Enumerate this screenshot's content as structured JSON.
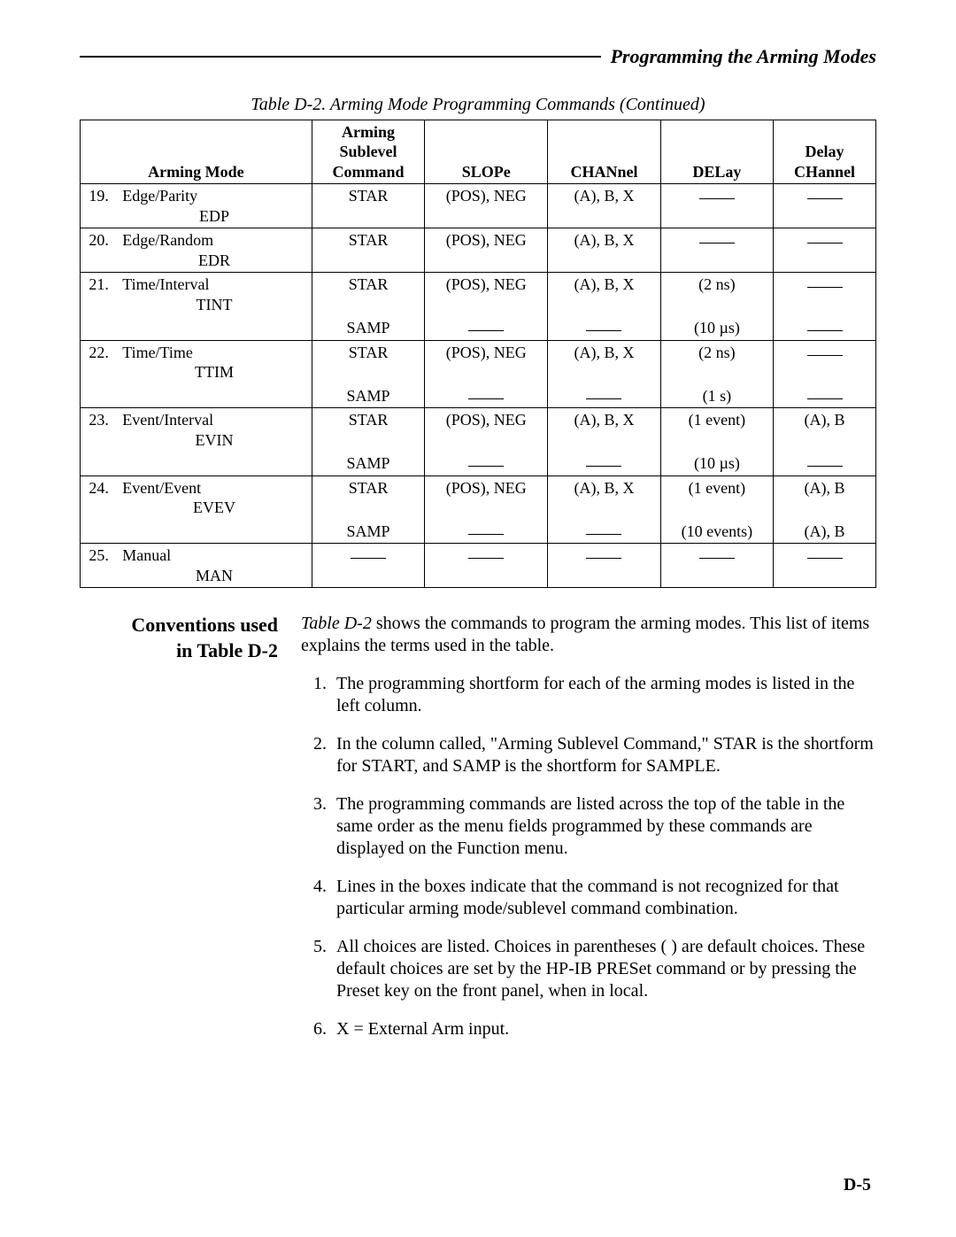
{
  "header": {
    "title": "Programming the Arming Modes"
  },
  "table": {
    "caption": "Table D-2. Arming Mode Programming Commands (Continued)",
    "headers": {
      "mode": "Arming Mode",
      "cmd_l1": "Arming",
      "cmd_l2": "Sublevel",
      "cmd_l3": "Command",
      "slope": "SLOPe",
      "channel": "CHANnel",
      "delay": "DELay",
      "dchan_l1": "Delay",
      "dchan_l2": "CHannel"
    },
    "rows": [
      {
        "num": "19.",
        "mode": "Edge/Parity",
        "sub": "EDP",
        "lines": [
          {
            "cmd": "STAR",
            "slope": "(POS), NEG",
            "chan": "(A), B, X",
            "delay": "—",
            "dchan": "—"
          }
        ]
      },
      {
        "num": "20.",
        "mode": "Edge/Random",
        "sub": "EDR",
        "lines": [
          {
            "cmd": "STAR",
            "slope": "(POS), NEG",
            "chan": "(A), B, X",
            "delay": "—",
            "dchan": "—"
          }
        ]
      },
      {
        "num": "21.",
        "mode": "Time/Interval",
        "sub": "TINT",
        "lines": [
          {
            "cmd": "STAR",
            "slope": "(POS), NEG",
            "chan": "(A), B, X",
            "delay": "(2 ns)",
            "dchan": "—"
          },
          {
            "cmd": "SAMP",
            "slope": "—",
            "chan": "—",
            "delay": "(10 µs)",
            "dchan": "—"
          }
        ]
      },
      {
        "num": "22.",
        "mode": "Time/Time",
        "sub": "TTIM",
        "lines": [
          {
            "cmd": "STAR",
            "slope": "(POS), NEG",
            "chan": "(A), B, X",
            "delay": "(2 ns)",
            "dchan": "—"
          },
          {
            "cmd": "SAMP",
            "slope": "—",
            "chan": "—",
            "delay": "(1 s)",
            "dchan": "—"
          }
        ]
      },
      {
        "num": "23.",
        "mode": "Event/Interval",
        "sub": "EVIN",
        "lines": [
          {
            "cmd": "STAR",
            "slope": "(POS), NEG",
            "chan": "(A), B, X",
            "delay": "(1 event)",
            "dchan": "(A), B"
          },
          {
            "cmd": "SAMP",
            "slope": "—",
            "chan": "—",
            "delay": "(10 µs)",
            "dchan": "—"
          }
        ]
      },
      {
        "num": "24.",
        "mode": "Event/Event",
        "sub": "EVEV",
        "lines": [
          {
            "cmd": "STAR",
            "slope": "(POS), NEG",
            "chan": "(A), B, X",
            "delay": "(1 event)",
            "dchan": "(A), B"
          },
          {
            "cmd": "SAMP",
            "slope": "—",
            "chan": "—",
            "delay": "(10 events)",
            "dchan": "(A), B"
          }
        ]
      },
      {
        "num": "25.",
        "mode": "Manual",
        "sub": "MAN",
        "lines": [
          {
            "cmd": "—",
            "slope": "—",
            "chan": "—",
            "delay": "—",
            "dchan": "—"
          }
        ]
      }
    ]
  },
  "conventions": {
    "heading_l1": "Conventions used",
    "heading_l2": "in Table D-2",
    "intro_prefix_ital": "Table D-2",
    "intro_rest": " shows the commands to program the arming modes. This list of items explains the terms used in the table.",
    "items": [
      "The programming shortform for each of the arming modes is listed in the left column.",
      "In the column called, \"Arming Sublevel Command,\" STAR is the shortform for START, and SAMP is the shortform for SAMPLE.",
      "The programming commands are listed across the top of the table in the same order as the menu fields programmed by these commands are displayed on the Function menu.",
      "Lines in the boxes indicate that the command is not recognized for that particular arming mode/sublevel command combination.",
      "All choices are listed. Choices in parentheses ( ) are default choices. These default choices are set by the HP-IB PRESet command or by pressing the Preset key on the front panel, when in local.",
      "X = External Arm input."
    ]
  },
  "pageNumber": "D-5"
}
